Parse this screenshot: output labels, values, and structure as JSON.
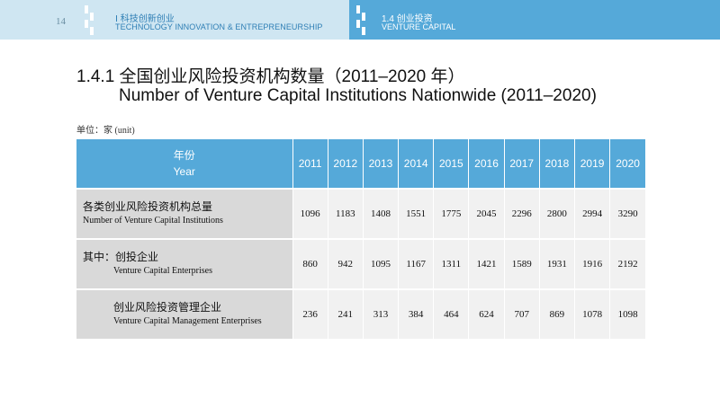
{
  "header": {
    "page_number": "14",
    "section_cn": "Ⅰ 科技创新创业",
    "section_en": "TECHNOLOGY INNOVATION & ENTREPRENEURSHIP",
    "subsection_cn": "1.4 创业投资",
    "subsection_en": "VENTURE CAPITAL",
    "colors": {
      "left_band": "#cfe6f2",
      "right_band": "#55a9d9",
      "accent": "#2f7fb5"
    }
  },
  "title": {
    "cn": "1.4.1 全国创业风险投资机构数量（2011–2020 年）",
    "en": "Number of Venture Capital Institutions Nationwide (2011–2020)"
  },
  "unit": "单位：家  (unit)",
  "table": {
    "header_cn": "年份",
    "header_en": "Year",
    "years": [
      "2011",
      "2012",
      "2013",
      "2014",
      "2015",
      "2016",
      "2017",
      "2018",
      "2019",
      "2020"
    ],
    "rows": [
      {
        "label_cn": "各类创业风险投资机构总量",
        "label_en": "Number of Venture Capital Institutions",
        "values": [
          "1096",
          "1183",
          "1408",
          "1551",
          "1775",
          "2045",
          "2296",
          "2800",
          "2994",
          "3290"
        ]
      },
      {
        "label_cn": "其中：创投企业",
        "label_en": "Venture Capital Enterprises",
        "values": [
          "860",
          "942",
          "1095",
          "1167",
          "1311",
          "1421",
          "1589",
          "1931",
          "1916",
          "2192"
        ]
      },
      {
        "label_cn": "创业风险投资管理企业",
        "label_en": "Venture Capital Management Enterprises",
        "values": [
          "236",
          "241",
          "313",
          "384",
          "464",
          "624",
          "707",
          "869",
          "1078",
          "1098"
        ]
      }
    ]
  }
}
